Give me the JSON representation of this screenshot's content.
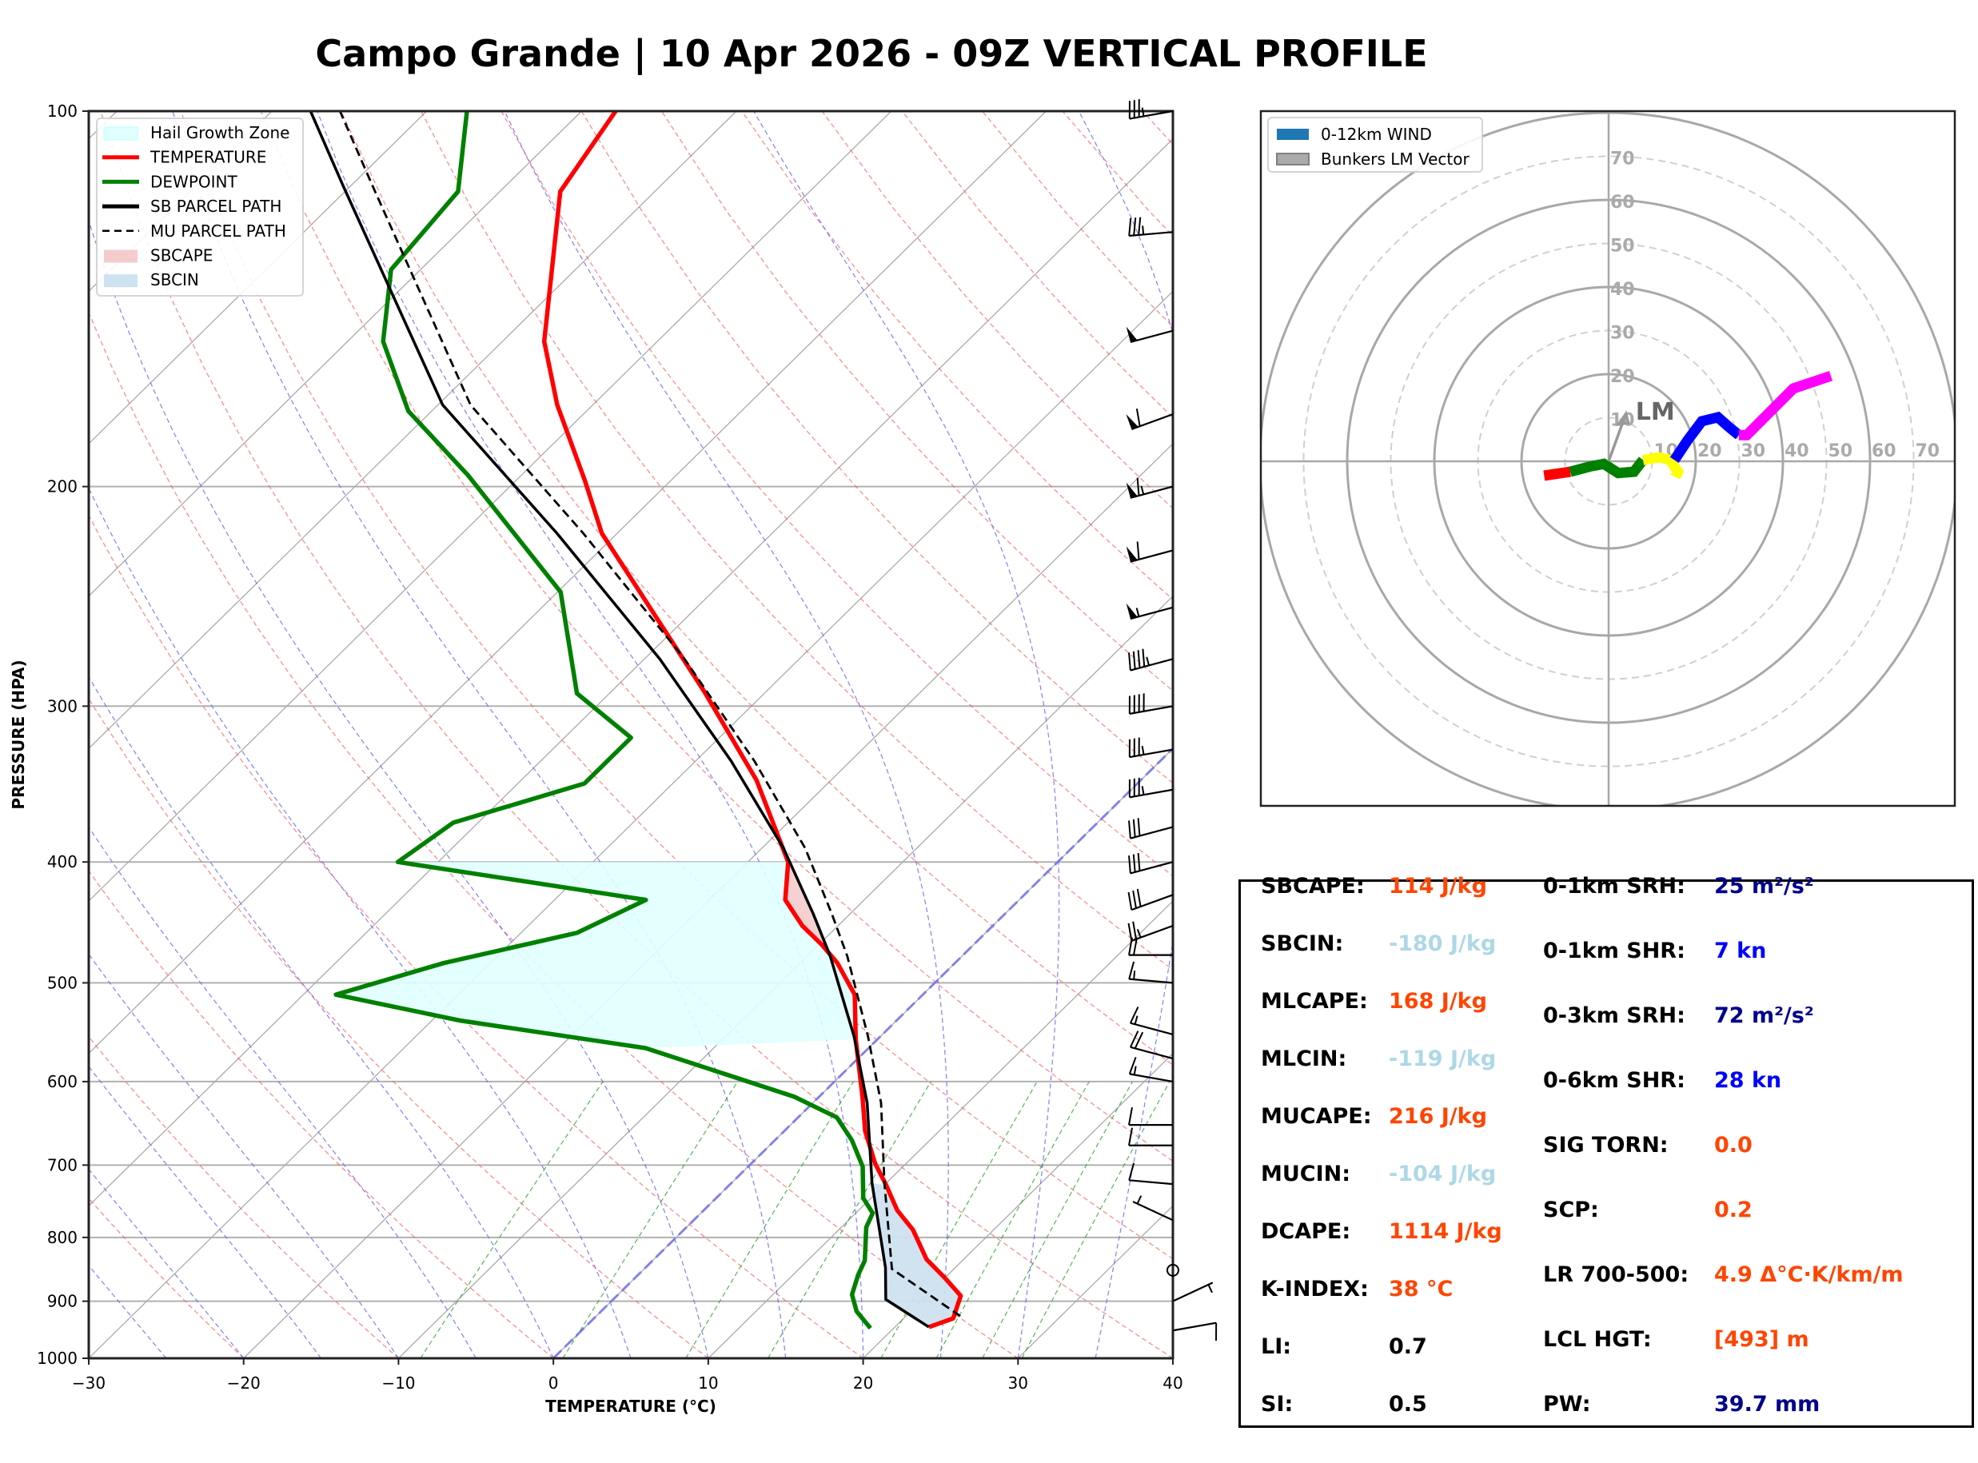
{
  "title": "Campo Grande | 10 Apr 2026 - 09Z VERTICAL PROFILE",
  "chart_data": [
    {
      "type": "line",
      "subtype": "skew-t log-p",
      "xlabel": "TEMPERATURE (°C)",
      "ylabel": "PRESSURE (HPA)",
      "xlim": [
        -30,
        40
      ],
      "ylim": [
        1000,
        100
      ],
      "x_ticks": [
        -30,
        -20,
        -10,
        0,
        10,
        20,
        30,
        40
      ],
      "x_tick_labels": [
        "−30",
        "−20",
        "−10",
        "0",
        "10",
        "20",
        "30",
        "40"
      ],
      "y_ticks": [
        100,
        200,
        300,
        400,
        500,
        600,
        700,
        800,
        900,
        1000
      ],
      "y_tick_labels": [
        "100",
        "200",
        "300",
        "400",
        "500",
        "600",
        "700",
        "800",
        "900",
        "1000"
      ],
      "grid": true,
      "legend_position": "top-left",
      "legend": [
        {
          "label": "Hail Growth Zone",
          "kind": "patch",
          "color": "#e0ffff"
        },
        {
          "label": "TEMPERATURE",
          "kind": "line",
          "color": "#ff0000"
        },
        {
          "label": "DEWPOINT",
          "kind": "line",
          "color": "#008000"
        },
        {
          "label": "SB PARCEL PATH",
          "kind": "line",
          "color": "#000000"
        },
        {
          "label": "MU PARCEL PATH",
          "kind": "dashed",
          "color": "#000000"
        },
        {
          "label": "SBCAPE",
          "kind": "patch",
          "color": "#f4cccc"
        },
        {
          "label": "SBCIN",
          "kind": "patch",
          "color": "#cfe2f0"
        }
      ],
      "series": [
        {
          "name": "TEMPERATURE",
          "color": "#ff0000",
          "pressure": [
            944,
            929,
            891,
            862,
            833,
            789,
            761,
            726,
            698,
            657,
            617,
            555,
            511,
            482,
            466,
            450,
            429,
            400,
            344,
            292,
            218,
            198,
            172,
            153,
            116,
            100
          ],
          "temperature": [
            22.2,
            23.2,
            22.2,
            20.0,
            17.6,
            14.8,
            12.5,
            10.1,
            8.0,
            5.2,
            2.8,
            -1.4,
            -4.4,
            -7.6,
            -9.8,
            -12.3,
            -15.1,
            -17.4,
            -24.8,
            -34.0,
            -51.0,
            -55.5,
            -62.3,
            -67.3,
            -76.1,
            -77.8
          ]
        },
        {
          "name": "DEWPOINT",
          "color": "#008000",
          "pressure": [
            946,
            917,
            889,
            857,
            835,
            785,
            765,
            744,
            702,
            669,
            641,
            617,
            564,
            536,
            511,
            482,
            456,
            429,
            400,
            372,
            346,
            318,
            293,
            243,
            196,
            174,
            153,
            134,
            116,
            100
          ],
          "temperature": [
            18.5,
            16.5,
            15.1,
            14.2,
            13.7,
            11.6,
            11.1,
            9.5,
            7.4,
            5.0,
            2.5,
            -1.6,
            -14.4,
            -28.2,
            -37.9,
            -33.0,
            -26.4,
            -24.1,
            -42.6,
            -41.6,
            -35.7,
            -35.7,
            -42.1,
            -49.8,
            -63.4,
            -71.5,
            -77.7,
            -81.9,
            -82.7,
            -87.4
          ]
        },
        {
          "name": "SB PARCEL PATH",
          "color": "#000000",
          "pressure": [
            944,
            897,
            846,
            724,
            624,
            552,
            476,
            440,
            390,
            332,
            275,
            218,
            172,
            115,
            100
          ],
          "temperature": [
            22.2,
            17.6,
            15.5,
            9.1,
            3.5,
            -1.7,
            -8.5,
            -12.4,
            -18.6,
            -27.7,
            -39.0,
            -53.9,
            -69.7,
            -90.4,
            -97.5
          ]
        },
        {
          "name": "MU PARCEL PATH",
          "color": "#000000",
          "dashed": true,
          "pressure": [
            925,
            848,
            724,
            624,
            552,
            476,
            440,
            390,
            332,
            275,
            218,
            172,
            115,
            100
          ],
          "temperature": [
            23.5,
            16.0,
            9.9,
            4.4,
            -0.8,
            -7.4,
            -11.2,
            -17.2,
            -26.2,
            -37.4,
            -52.2,
            -67.9,
            -88.5,
            -95.6
          ]
        }
      ],
      "hail_growth_zone": {
        "pressure_top": 375,
        "pressure_bottom": 590,
        "color": "#e0ffff"
      },
      "wind_barbs": [
        {
          "pressure": 100,
          "speed_kt": 35,
          "direction_deg": 260
        },
        {
          "pressure": 125,
          "speed_kt": 35,
          "direction_deg": 265
        },
        {
          "pressure": 150,
          "speed_kt": 50,
          "direction_deg": 255
        },
        {
          "pressure": 175,
          "speed_kt": 60,
          "direction_deg": 250
        },
        {
          "pressure": 200,
          "speed_kt": 65,
          "direction_deg": 255
        },
        {
          "pressure": 225,
          "speed_kt": 60,
          "direction_deg": 255
        },
        {
          "pressure": 250,
          "speed_kt": 55,
          "direction_deg": 255
        },
        {
          "pressure": 275,
          "speed_kt": 45,
          "direction_deg": 255
        },
        {
          "pressure": 300,
          "speed_kt": 40,
          "direction_deg": 260
        },
        {
          "pressure": 325,
          "speed_kt": 35,
          "direction_deg": 260
        },
        {
          "pressure": 350,
          "speed_kt": 35,
          "direction_deg": 260
        },
        {
          "pressure": 375,
          "speed_kt": 30,
          "direction_deg": 255
        },
        {
          "pressure": 400,
          "speed_kt": 30,
          "direction_deg": 255
        },
        {
          "pressure": 425,
          "speed_kt": 30,
          "direction_deg": 250
        },
        {
          "pressure": 450,
          "speed_kt": 25,
          "direction_deg": 250
        },
        {
          "pressure": 475,
          "speed_kt": 20,
          "direction_deg": 270
        },
        {
          "pressure": 500,
          "speed_kt": 15,
          "direction_deg": 275
        },
        {
          "pressure": 550,
          "speed_kt": 15,
          "direction_deg": 285
        },
        {
          "pressure": 575,
          "speed_kt": 20,
          "direction_deg": 285
        },
        {
          "pressure": 600,
          "speed_kt": 15,
          "direction_deg": 280
        },
        {
          "pressure": 650,
          "speed_kt": 10,
          "direction_deg": 270
        },
        {
          "pressure": 675,
          "speed_kt": 10,
          "direction_deg": 270
        },
        {
          "pressure": 725,
          "speed_kt": 10,
          "direction_deg": 275
        },
        {
          "pressure": 775,
          "speed_kt": 5,
          "direction_deg": 295
        },
        {
          "pressure": 850,
          "speed_kt": 0,
          "direction_deg": 0
        },
        {
          "pressure": 900,
          "speed_kt": 5,
          "direction_deg": 65
        },
        {
          "pressure": 950,
          "speed_kt": 10,
          "direction_deg": 80
        }
      ]
    },
    {
      "type": "line",
      "subtype": "hodograph",
      "title": "",
      "xlim": [
        -80,
        80
      ],
      "ylim": [
        -80,
        80
      ],
      "ring_labels": [
        "10",
        "20",
        "30",
        "40",
        "50",
        "60",
        "70"
      ],
      "rings_solid_kt": [
        20,
        40,
        60,
        80
      ],
      "rings_dashed_kt": [
        10,
        30,
        50,
        70
      ],
      "legend_position": "top-left",
      "legend": [
        {
          "label": "0-12km WIND",
          "color": "#1f77b4"
        },
        {
          "label": "Bunkers LM Vector",
          "color": "#aaaaaa"
        }
      ],
      "series": [
        {
          "name": "segment-red",
          "color": "#ff0000",
          "u": [
            -14.8,
            -8.8
          ],
          "v": [
            -3.3,
            -2.4
          ]
        },
        {
          "name": "segment-green",
          "color": "#008000",
          "u": [
            -8.8,
            -4.3,
            -1.1,
            2.2,
            5.8,
            7.9
          ],
          "v": [
            -2.4,
            -1.2,
            -0.6,
            -2.7,
            -2.4,
            0.3
          ]
        },
        {
          "name": "segment-yellow",
          "color": "#ffff00",
          "u": [
            7.9,
            11.7,
            14.1,
            15.9,
            15.3
          ],
          "v": [
            0.3,
            0.9,
            0.3,
            -2.4,
            -3.6
          ]
        },
        {
          "name": "segment-blue",
          "color": "#0000ff",
          "u": [
            15.1,
            18.1,
            21.4,
            25.1,
            27.8,
            29.9
          ],
          "v": [
            0.3,
            4.8,
            9.2,
            10.1,
            7.7,
            6.0
          ]
        },
        {
          "name": "segment-magenta",
          "color": "#ff00ff",
          "u": [
            29.9,
            31.7,
            37.9,
            42.4,
            51.0
          ],
          "v": [
            6.0,
            6.0,
            12.2,
            16.7,
            19.6
          ]
        }
      ],
      "lm_vector": {
        "label": "LM",
        "u": 4.0,
        "v": 11.0,
        "color": "#999999"
      }
    }
  ],
  "stats": {
    "left": [
      {
        "label": "SBCAPE:",
        "value": "114 J/kg",
        "color": "#ff4500"
      },
      {
        "label": "SBCIN:",
        "value": "-180 J/kg",
        "color": "#add8e6"
      },
      {
        "label": "MLCAPE:",
        "value": "168 J/kg",
        "color": "#ff4500"
      },
      {
        "label": "MLCIN:",
        "value": "-119 J/kg",
        "color": "#add8e6"
      },
      {
        "label": "MUCAPE:",
        "value": "216 J/kg",
        "color": "#ff4500"
      },
      {
        "label": "MUCIN:",
        "value": "-104 J/kg",
        "color": "#add8e6"
      },
      {
        "label": "DCAPE:",
        "value": "1114 J/kg",
        "color": "#ff4500"
      },
      {
        "label": "K-INDEX:",
        "value": "38 °C",
        "color": "#ff4500"
      },
      {
        "label": "LI:",
        "value": "0.7",
        "color": "#000000"
      },
      {
        "label": "SI:",
        "value": "0.5",
        "color": "#000000"
      }
    ],
    "right": [
      {
        "label": "0-1km SRH:",
        "value": "25 m²/s²",
        "color": "#00008b"
      },
      {
        "label": "0-1km SHR:",
        "value": "7 kn",
        "color": "#0000ff"
      },
      {
        "label": "0-3km SRH:",
        "value": "72 m²/s²",
        "color": "#00008b"
      },
      {
        "label": "0-6km SHR:",
        "value": "28 kn",
        "color": "#0000ff"
      },
      {
        "label": "SIG TORN:",
        "value": "0.0",
        "color": "#ff4500"
      },
      {
        "label": "SCP:",
        "value": "0.2",
        "color": "#ff4500"
      },
      {
        "label": "LR 700-500:",
        "value": "4.9 Δ°C·K/km/m",
        "color": "#ff4500"
      },
      {
        "label": "LCL HGT:",
        "value": "[493] m",
        "color": "#ff4500"
      },
      {
        "label": "PW:",
        "value": "39.7 mm",
        "color": "#00008b"
      }
    ]
  }
}
